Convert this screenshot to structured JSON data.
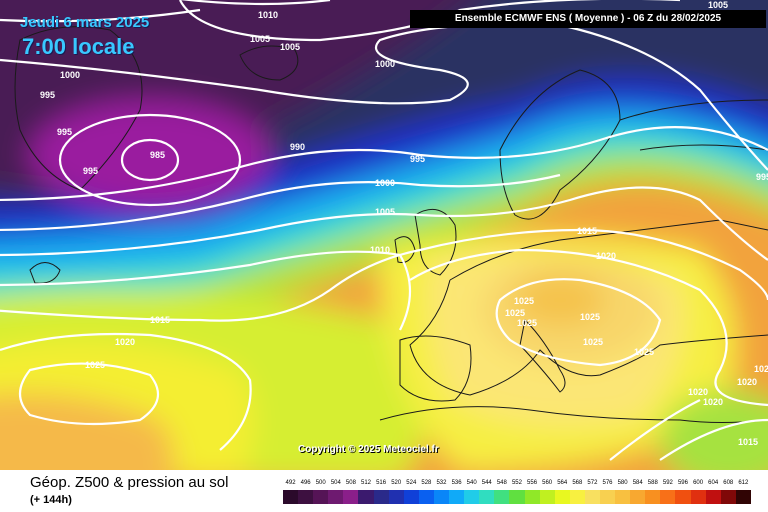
{
  "header": {
    "date": "Jeudi 6 mars 2025",
    "time": "7:00 locale",
    "model_info": "Ensemble ECMWF ENS  ( Moyenne )  -  06 Z du 28/02/2025"
  },
  "copyright": "Copyright © 2025 Meteociel.fr",
  "footer": {
    "title": "Géop. Z500 & pression au sol",
    "subtitle": "(+ 144h)"
  },
  "isobar_labels": [
    {
      "text": "1010"
    },
    {
      "text": "1005"
    },
    {
      "text": "1005"
    },
    {
      "text": "1000"
    },
    {
      "text": "1005"
    },
    {
      "text": "1000"
    },
    {
      "text": "995"
    },
    {
      "text": "995"
    },
    {
      "text": "985"
    },
    {
      "text": "995"
    },
    {
      "text": "990"
    },
    {
      "text": "995"
    },
    {
      "text": "1000"
    },
    {
      "text": "1005"
    },
    {
      "text": "1010"
    },
    {
      "text": "1015"
    },
    {
      "text": "1020"
    },
    {
      "text": "1015"
    },
    {
      "text": "1020"
    },
    {
      "text": "1025"
    },
    {
      "text": "1025"
    },
    {
      "text": "1025"
    },
    {
      "text": "1025"
    },
    {
      "text": "1025"
    },
    {
      "text": "1025"
    },
    {
      "text": "1025"
    },
    {
      "text": "1020"
    },
    {
      "text": "1020"
    },
    {
      "text": "1020"
    },
    {
      "text": "1015"
    },
    {
      "text": "995"
    },
    {
      "text": "1020"
    }
  ],
  "color_scale": {
    "labels": [
      "492",
      "496",
      "500",
      "504",
      "508",
      "512",
      "516",
      "520",
      "524",
      "528",
      "532",
      "536",
      "540",
      "544",
      "548",
      "552",
      "556",
      "560",
      "564",
      "568",
      "572",
      "576",
      "580",
      "584",
      "588",
      "592",
      "596",
      "600",
      "604",
      "608",
      "612"
    ],
    "colors": [
      "#2b0a2b",
      "#3d1040",
      "#551456",
      "#6e1a70",
      "#8a1f8a",
      "#3b1a6e",
      "#2a2a8a",
      "#2030b0",
      "#1040d8",
      "#0a60f0",
      "#0a86f8",
      "#10aaf8",
      "#20cce8",
      "#30ddc0",
      "#40e080",
      "#60e040",
      "#90e828",
      "#c0f020",
      "#e8f820",
      "#f8f040",
      "#f8e060",
      "#f8d050",
      "#f8c040",
      "#f8a830",
      "#f89020",
      "#f87018",
      "#f05010",
      "#e03010",
      "#c01010",
      "#800808",
      "#300404"
    ]
  }
}
